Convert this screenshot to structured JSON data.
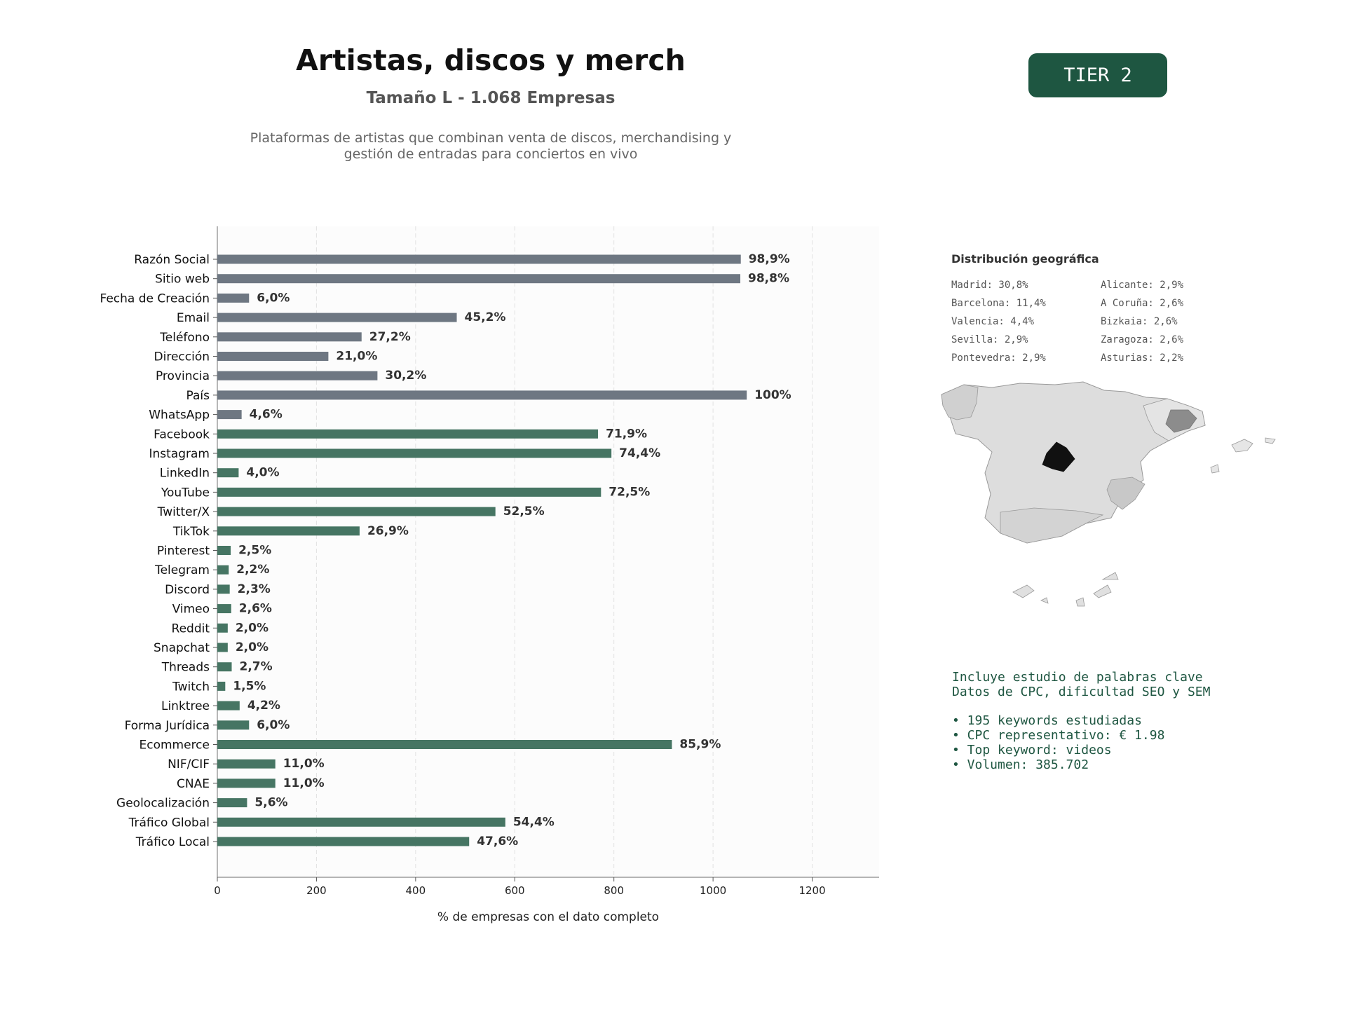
{
  "header": {
    "title": "Artistas, discos y merch",
    "subtitle": "Tamaño L - 1.068 Empresas",
    "description_line1": "Plataformas de artistas que combinan venta de discos, merchandising y",
    "description_line2": "gestión de entradas para conciertos en vivo",
    "tier_label": "TIER 2"
  },
  "colors": {
    "gray_bar": "#6e7782",
    "green_bar": "#467563",
    "dark_green": "#1e5641"
  },
  "chart_data": {
    "type": "bar",
    "orientation": "horizontal",
    "xlabel": "% de empresas con el dato completo",
    "xlim": [
      0,
      1335
    ],
    "xticks": [
      0,
      200,
      400,
      600,
      800,
      1000,
      1200
    ],
    "grid": "vertical dashed",
    "categories": [
      "Razón Social",
      "Sitio web",
      "Fecha de Creación",
      "Email",
      "Teléfono",
      "Dirección",
      "Provincia",
      "País",
      "WhatsApp",
      "Facebook",
      "Instagram",
      "LinkedIn",
      "YouTube",
      "Twitter/X",
      "TikTok",
      "Pinterest",
      "Telegram",
      "Discord",
      "Vimeo",
      "Reddit",
      "Snapchat",
      "Threads",
      "Twitch",
      "Linktree",
      "Forma Jurídica",
      "Ecommerce",
      "NIF/CIF",
      "CNAE",
      "Geolocalización",
      "Tráfico Global",
      "Tráfico Local"
    ],
    "values": [
      1056,
      1055,
      64,
      483,
      291,
      224,
      323,
      1068,
      49,
      768,
      795,
      43,
      774,
      561,
      287,
      27,
      23,
      25,
      28,
      21,
      21,
      29,
      16,
      45,
      64,
      917,
      117,
      117,
      60,
      581,
      508
    ],
    "labels": [
      "98,9%",
      "98,8%",
      "6,0%",
      "45,2%",
      "27,2%",
      "21,0%",
      "30,2%",
      "100%",
      "4,6%",
      "71,9%",
      "74,4%",
      "4,0%",
      "72,5%",
      "52,5%",
      "26,9%",
      "2,5%",
      "2,2%",
      "2,3%",
      "2,6%",
      "2,0%",
      "2,0%",
      "2,7%",
      "1,5%",
      "4,2%",
      "6,0%",
      "85,9%",
      "11,0%",
      "11,0%",
      "5,6%",
      "54,4%",
      "47,6%"
    ],
    "groups": [
      "gray",
      "gray",
      "gray",
      "gray",
      "gray",
      "gray",
      "gray",
      "gray",
      "gray",
      "green",
      "green",
      "green",
      "green",
      "green",
      "green",
      "green",
      "green",
      "green",
      "green",
      "green",
      "green",
      "green",
      "green",
      "green",
      "green",
      "green",
      "green",
      "green",
      "green",
      "green",
      "green"
    ]
  },
  "geo": {
    "title": "Distribución geográfica",
    "left": [
      "Madrid: 30,8%",
      "Barcelona: 11,4%",
      "Valencia: 4,4%",
      "Sevilla: 2,9%",
      "Pontevedra: 2,9%"
    ],
    "right": [
      "Alicante: 2,9%",
      "A Coruña: 2,6%",
      "Bizkaia: 2,6%",
      "Zaragoza: 2,6%",
      "Asturias: 2,2%"
    ]
  },
  "keywords": {
    "line1": "Incluye estudio de palabras clave",
    "line2": "Datos de CPC, dificultad SEO y SEM",
    "bullets": [
      "• 195 keywords estudiadas",
      "• CPC representativo: € 1.98",
      "• Top keyword: videos",
      "• Volumen: 385.702"
    ]
  }
}
